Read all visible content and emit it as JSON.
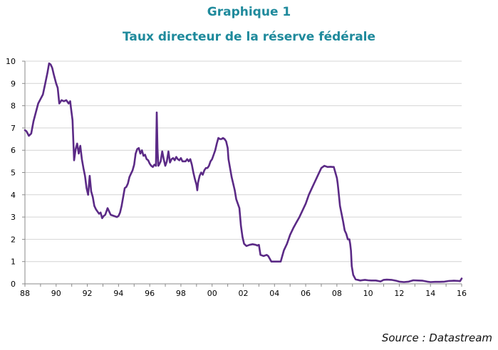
{
  "title": "Graphique 1",
  "subtitle": "Taux directeur de la réserve fédérale",
  "source": "Source : Datastream",
  "colors": {
    "title": "#1f8a9c",
    "line": "#5b2a86",
    "grid": "#d4d4d4",
    "axis": "#8a8a8a"
  },
  "chart_data": {
    "type": "line",
    "title": "",
    "xlabel": "",
    "ylabel": "",
    "xlim": [
      1988,
      2016
    ],
    "ylim": [
      0,
      10
    ],
    "grid": true,
    "legend": "none",
    "x_ticks": [
      {
        "value": 1988,
        "label": "88"
      },
      {
        "value": 1990,
        "label": "90"
      },
      {
        "value": 1992,
        "label": "92"
      },
      {
        "value": 1994,
        "label": "94"
      },
      {
        "value": 1996,
        "label": "96"
      },
      {
        "value": 1998,
        "label": "98"
      },
      {
        "value": 2000,
        "label": "00"
      },
      {
        "value": 2002,
        "label": "02"
      },
      {
        "value": 2004,
        "label": "04"
      },
      {
        "value": 2006,
        "label": "06"
      },
      {
        "value": 2008,
        "label": "08"
      },
      {
        "value": 2010,
        "label": "10"
      },
      {
        "value": 2012,
        "label": "12"
      },
      {
        "value": 2014,
        "label": "14"
      },
      {
        "value": 2016,
        "label": "16"
      }
    ],
    "y_ticks": [
      {
        "value": 0,
        "label": "0"
      },
      {
        "value": 1,
        "label": "1"
      },
      {
        "value": 2,
        "label": "2"
      },
      {
        "value": 3,
        "label": "3"
      },
      {
        "value": 4,
        "label": "4"
      },
      {
        "value": 5,
        "label": "5"
      },
      {
        "value": 6,
        "label": "6"
      },
      {
        "value": 7,
        "label": "7"
      },
      {
        "value": 8,
        "label": "8"
      },
      {
        "value": 9,
        "label": "9"
      },
      {
        "value": 10,
        "label": "10"
      }
    ],
    "series": [
      {
        "x": [
          1988.0,
          1988.1,
          1988.25,
          1988.4,
          1988.55,
          1988.7,
          1988.85,
          1989.0,
          1989.15,
          1989.3,
          1989.45,
          1989.55,
          1989.65,
          1989.75,
          1989.85,
          1990.0,
          1990.1,
          1990.2,
          1990.35,
          1990.5,
          1990.65,
          1990.8,
          1990.9,
          1990.95,
          1991.05,
          1991.15,
          1991.25,
          1991.35,
          1991.45,
          1991.55,
          1991.65,
          1991.75,
          1991.85,
          1991.95,
          1992.05,
          1992.15,
          1992.25,
          1992.35,
          1992.45,
          1992.55,
          1992.65,
          1992.75,
          1992.85,
          1992.95,
          1993.05,
          1993.15,
          1993.3,
          1993.5,
          1993.7,
          1993.9,
          1994.0,
          1994.1,
          1994.2,
          1994.3,
          1994.4,
          1994.5,
          1994.6,
          1994.7,
          1994.8,
          1994.9,
          1995.0,
          1995.1,
          1995.2,
          1995.3,
          1995.4,
          1995.5,
          1995.6,
          1995.7,
          1995.8,
          1995.9,
          1996.0,
          1996.1,
          1996.2,
          1996.3,
          1996.4,
          1996.45,
          1996.5,
          1996.55,
          1996.6,
          1996.7,
          1996.8,
          1996.9,
          1997.0,
          1997.1,
          1997.2,
          1997.3,
          1997.4,
          1997.5,
          1997.6,
          1997.7,
          1997.8,
          1997.9,
          1998.0,
          1998.1,
          1998.2,
          1998.3,
          1998.4,
          1998.5,
          1998.6,
          1998.7,
          1998.8,
          1998.9,
          1999.0,
          1999.05,
          1999.1,
          1999.2,
          1999.3,
          1999.4,
          1999.5,
          1999.6,
          1999.7,
          1999.8,
          1999.9,
          2000.0,
          2000.1,
          2000.2,
          2000.3,
          2000.4,
          2000.5,
          2000.6,
          2000.7,
          2000.8,
          2000.9,
          2001.0,
          2001.05,
          2001.15,
          2001.25,
          2001.35,
          2001.45,
          2001.55,
          2001.65,
          2001.75,
          2001.85,
          2001.95,
          2002.05,
          2002.2,
          2002.4,
          2002.6,
          2002.8,
          2002.9,
          2003.0,
          2003.1,
          2003.3,
          2003.5,
          2003.6,
          2003.8,
          2004.0,
          2004.2,
          2004.4,
          2004.5,
          2004.6,
          2004.8,
          2005.0,
          2005.2,
          2005.4,
          2005.6,
          2005.8,
          2006.0,
          2006.2,
          2006.4,
          2006.6,
          2006.8,
          2007.0,
          2007.2,
          2007.4,
          2007.6,
          2007.7,
          2007.8,
          2007.9,
          2008.0,
          2008.05,
          2008.1,
          2008.2,
          2008.3,
          2008.4,
          2008.5,
          2008.6,
          2008.7,
          2008.8,
          2008.85,
          2008.9,
          2008.95,
          2009.05,
          2009.2,
          2009.5,
          2009.8,
          2010.0,
          2010.2,
          2010.5,
          2010.8,
          2011.0,
          2011.2,
          2011.5,
          2011.8,
          2012.0,
          2012.3,
          2012.6,
          2012.9,
          2013.2,
          2013.5,
          2013.8,
          2014.0,
          2014.3,
          2014.6,
          2014.9,
          2015.2,
          2015.5,
          2015.8,
          2015.9,
          2016.0
        ],
        "y": [
          6.9,
          6.85,
          6.65,
          6.75,
          7.3,
          7.7,
          8.1,
          8.3,
          8.5,
          9.0,
          9.5,
          9.9,
          9.85,
          9.7,
          9.4,
          9.0,
          8.8,
          8.1,
          8.25,
          8.2,
          8.25,
          8.1,
          8.2,
          7.9,
          7.35,
          5.55,
          6.05,
          6.3,
          5.85,
          6.2,
          5.6,
          5.2,
          4.85,
          4.3,
          4.0,
          4.85,
          4.15,
          3.9,
          3.5,
          3.35,
          3.25,
          3.15,
          3.2,
          2.95,
          3.05,
          3.1,
          3.4,
          3.1,
          3.05,
          3.0,
          3.05,
          3.2,
          3.5,
          3.9,
          4.3,
          4.35,
          4.5,
          4.8,
          4.95,
          5.1,
          5.35,
          5.85,
          6.05,
          6.1,
          5.85,
          6.0,
          5.75,
          5.8,
          5.6,
          5.55,
          5.4,
          5.3,
          5.25,
          5.35,
          5.3,
          7.7,
          6.05,
          5.3,
          5.35,
          5.5,
          5.95,
          5.6,
          5.3,
          5.5,
          5.95,
          5.45,
          5.6,
          5.65,
          5.55,
          5.7,
          5.6,
          5.55,
          5.65,
          5.5,
          5.5,
          5.5,
          5.6,
          5.5,
          5.6,
          5.35,
          5.0,
          4.7,
          4.45,
          4.2,
          4.55,
          4.85,
          5.0,
          4.9,
          5.1,
          5.2,
          5.2,
          5.3,
          5.5,
          5.6,
          5.8,
          6.0,
          6.3,
          6.55,
          6.5,
          6.5,
          6.55,
          6.5,
          6.4,
          6.1,
          5.6,
          5.2,
          4.8,
          4.5,
          4.2,
          3.8,
          3.6,
          3.4,
          2.6,
          2.1,
          1.8,
          1.7,
          1.75,
          1.78,
          1.75,
          1.72,
          1.75,
          1.3,
          1.25,
          1.3,
          1.25,
          1.0,
          1.0,
          1.0,
          1.0,
          1.25,
          1.5,
          1.8,
          2.2,
          2.5,
          2.75,
          3.0,
          3.3,
          3.6,
          4.0,
          4.3,
          4.6,
          4.9,
          5.2,
          5.3,
          5.25,
          5.26,
          5.25,
          5.25,
          5.0,
          4.75,
          4.5,
          4.2,
          3.5,
          3.15,
          2.8,
          2.4,
          2.25,
          2.0,
          2.0,
          1.8,
          1.5,
          0.8,
          0.4,
          0.2,
          0.15,
          0.18,
          0.16,
          0.15,
          0.15,
          0.11,
          0.18,
          0.19,
          0.18,
          0.14,
          0.1,
          0.08,
          0.1,
          0.16,
          0.15,
          0.14,
          0.1,
          0.08,
          0.09,
          0.09,
          0.1,
          0.13,
          0.14,
          0.13,
          0.12,
          0.24
        ]
      }
    ]
  }
}
